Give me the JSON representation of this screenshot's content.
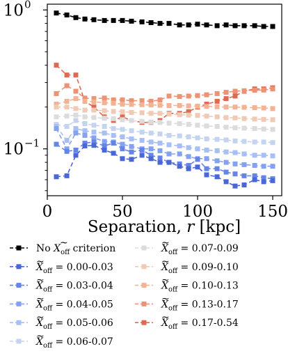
{
  "chart_data": {
    "type": "line",
    "xlabel": "Separation, r [kpc]",
    "xlabel_parts": {
      "prefix": "Separation, ",
      "var": "r",
      "suffix": " [kpc]"
    },
    "ylabel": "",
    "xlim": [
      0,
      156
    ],
    "ylim": [
      0.046,
      1.1
    ],
    "yscale": "log",
    "xticks": [
      0,
      50,
      100,
      150
    ],
    "xtick_labels": [
      "0",
      "50",
      "100",
      "150"
    ],
    "yticks": [
      1.0,
      0.1
    ],
    "ytick_labels": [
      {
        "base": "10",
        "exp": "0"
      },
      {
        "base": "10",
        "exp": "−1"
      }
    ],
    "grid": false,
    "legend_position": "below",
    "x": [
      6,
      13,
      19,
      25,
      31,
      38,
      44,
      50,
      56,
      63,
      69,
      75,
      81,
      88,
      94,
      100,
      106,
      113,
      119,
      125,
      131,
      138,
      144,
      150
    ],
    "series": [
      {
        "name": "No X̃off criterion",
        "label_tex": {
          "pre": "No ",
          "var": "X",
          "sub": "off",
          "post": " criterion"
        },
        "color": "#000000",
        "values": [
          0.95,
          0.92,
          0.88,
          0.86,
          0.85,
          0.84,
          0.84,
          0.84,
          0.83,
          0.82,
          0.81,
          0.8,
          0.8,
          0.78,
          0.78,
          0.79,
          0.78,
          0.77,
          0.78,
          0.77,
          0.77,
          0.77,
          0.76,
          0.76
        ]
      },
      {
        "name": "X̃off = 0.00-0.03",
        "label_tex": {
          "pre": "",
          "var": "X",
          "sub": "off",
          "post": " = 0.00-0.03"
        },
        "color": "#4a67d6",
        "values": [
          0.063,
          0.064,
          0.09,
          0.105,
          0.106,
          0.098,
          0.093,
          0.085,
          0.084,
          0.09,
          0.085,
          0.08,
          0.08,
          0.075,
          0.072,
          0.074,
          0.065,
          0.063,
          0.058,
          0.054,
          0.055,
          0.06,
          0.058,
          0.059
        ]
      },
      {
        "name": "X̃off = 0.03-0.04",
        "label_tex": {
          "pre": "",
          "var": "X",
          "sub": "off",
          "post": " = 0.03-0.04"
        },
        "color": "#6585e6",
        "values": [
          0.108,
          0.096,
          0.098,
          0.11,
          0.112,
          0.105,
          0.11,
          0.1,
          0.095,
          0.098,
          0.09,
          0.086,
          0.08,
          0.078,
          0.076,
          0.084,
          0.072,
          0.072,
          0.068,
          0.066,
          0.064,
          0.064,
          0.062,
          0.061
        ]
      },
      {
        "name": "X̃off = 0.04-0.05",
        "label_tex": {
          "pre": "",
          "var": "X",
          "sub": "off",
          "post": " = 0.04-0.05"
        },
        "color": "#85a2f0",
        "values": [
          0.14,
          0.1,
          0.13,
          0.125,
          0.12,
          0.113,
          0.112,
          0.108,
          0.104,
          0.1,
          0.1,
          0.097,
          0.092,
          0.092,
          0.088,
          0.085,
          0.085,
          0.082,
          0.08,
          0.078,
          0.077,
          0.076,
          0.075,
          0.075
        ]
      },
      {
        "name": "X̃off = 0.05-0.06",
        "label_tex": {
          "pre": "",
          "var": "X",
          "sub": "off",
          "post": " = 0.05-0.06"
        },
        "color": "#a7bff4",
        "values": [
          0.145,
          0.115,
          0.14,
          0.135,
          0.132,
          0.13,
          0.125,
          0.122,
          0.118,
          0.115,
          0.112,
          0.11,
          0.107,
          0.105,
          0.102,
          0.1,
          0.098,
          0.097,
          0.095,
          0.094,
          0.092,
          0.09,
          0.09,
          0.089
        ]
      },
      {
        "name": "X̃off = 0.06-0.07",
        "label_tex": {
          "pre": "",
          "var": "X",
          "sub": "off",
          "post": " = 0.06-0.07"
        },
        "color": "#c5d4ee",
        "values": [
          0.15,
          0.145,
          0.16,
          0.152,
          0.148,
          0.145,
          0.14,
          0.138,
          0.135,
          0.132,
          0.13,
          0.128,
          0.125,
          0.124,
          0.122,
          0.12,
          0.118,
          0.117,
          0.116,
          0.114,
          0.113,
          0.112,
          0.112,
          0.111
        ]
      },
      {
        "name": "X̃off = 0.07-0.09",
        "label_tex": {
          "pre": "",
          "var": "X",
          "sub": "off",
          "post": " = 0.07-0.09"
        },
        "color": "#dcdcdc",
        "values": [
          0.17,
          0.172,
          0.175,
          0.17,
          0.168,
          0.166,
          0.165,
          0.162,
          0.16,
          0.158,
          0.156,
          0.155,
          0.153,
          0.152,
          0.15,
          0.148,
          0.146,
          0.145,
          0.143,
          0.142,
          0.141,
          0.14,
          0.139,
          0.138
        ]
      },
      {
        "name": "X̃off = 0.09-0.10",
        "label_tex": {
          "pre": "",
          "var": "X",
          "sub": "off",
          "post": " = 0.09-0.10"
        },
        "color": "#efcbb6",
        "values": [
          0.2,
          0.2,
          0.195,
          0.19,
          0.19,
          0.188,
          0.186,
          0.185,
          0.183,
          0.182,
          0.18,
          0.18,
          0.178,
          0.176,
          0.175,
          0.174,
          0.172,
          0.17,
          0.168,
          0.167,
          0.165,
          0.164,
          0.163,
          0.162
        ]
      },
      {
        "name": "X̃off = 0.10-0.13",
        "label_tex": {
          "pre": "",
          "var": "X",
          "sub": "off",
          "post": " = 0.10-0.13"
        },
        "color": "#f4b294",
        "values": [
          0.21,
          0.22,
          0.23,
          0.22,
          0.218,
          0.215,
          0.213,
          0.21,
          0.209,
          0.208,
          0.207,
          0.206,
          0.205,
          0.205,
          0.204,
          0.203,
          0.202,
          0.201,
          0.2,
          0.2,
          0.199,
          0.198,
          0.197,
          0.195
        ]
      },
      {
        "name": "X̃off = 0.13-0.17",
        "label_tex": {
          "pre": "",
          "var": "X",
          "sub": "off",
          "post": " = 0.13-0.17"
        },
        "color": "#ed9275",
        "values": [
          0.25,
          0.285,
          0.26,
          0.232,
          0.23,
          0.232,
          0.225,
          0.225,
          0.222,
          0.222,
          0.22,
          0.225,
          0.24,
          0.238,
          0.24,
          0.242,
          0.245,
          0.25,
          0.255,
          0.26,
          0.262,
          0.264,
          0.265,
          0.27
        ]
      },
      {
        "name": "X̃off = 0.17-0.54",
        "label_tex": {
          "pre": "",
          "var": "X",
          "sub": "off",
          "post": " = 0.17-0.54"
        },
        "color": "#df6a52",
        "values": [
          0.4,
          0.34,
          0.34,
          0.22,
          0.2,
          0.17,
          0.16,
          0.17,
          0.16,
          0.155,
          0.155,
          0.16,
          0.18,
          0.18,
          0.185,
          0.2,
          0.21,
          0.22,
          0.23,
          0.24,
          0.26,
          0.27,
          0.27,
          0.275
        ]
      }
    ]
  }
}
